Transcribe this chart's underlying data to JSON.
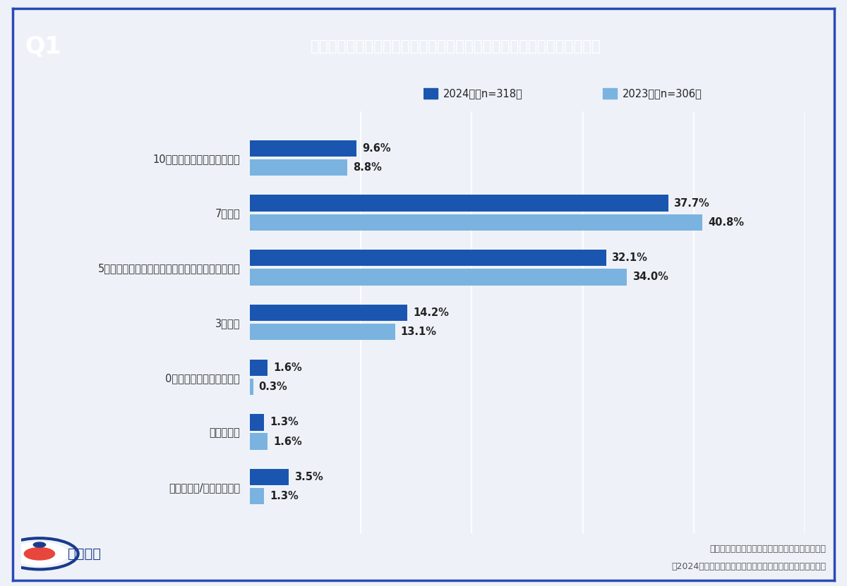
{
  "title_q": "Q1",
  "title_text": "お勤め先企業の社内会議でのオンライン会議の比率を教えてください。",
  "categories": [
    "10割（全てオンライン会議）",
    "7割程度",
    "5割程度（オンライン会議と対面会議が半分ずつ）",
    "3割程度",
    "0割（全て対面での会議）",
    "会議がない",
    "わからない/答えられない"
  ],
  "values_2024": [
    9.6,
    37.7,
    32.1,
    14.2,
    1.6,
    1.3,
    3.5
  ],
  "values_2023": [
    8.8,
    40.8,
    34.0,
    13.1,
    0.3,
    1.6,
    1.3
  ],
  "color_2024": "#1a56b0",
  "color_2023": "#7ab3e0",
  "legend_2024": "2024年（n=318）",
  "legend_2023": "2023年（n=306）",
  "bg_color": "#eef2f8",
  "header_bg": "#1e3a9f",
  "header_q_bg": "#1a3280",
  "header_text_color": "#ffffff",
  "source_line1": "一般社団法人オンラインコミュニケーション協会",
  "source_line2": "【2024年版】大企業のオンライン会議活用に関する定点調査",
  "xlim": [
    0,
    50
  ],
  "bar_height": 0.3,
  "bar_gap": 0.05,
  "border_color": "#2a4ab5",
  "grid_color": "#d0d8ea",
  "label_color": "#222222",
  "tick_label_color": "#333333",
  "source_color": "#555555",
  "logo_text": "リサピー",
  "logo_color": "#1a3a8c"
}
